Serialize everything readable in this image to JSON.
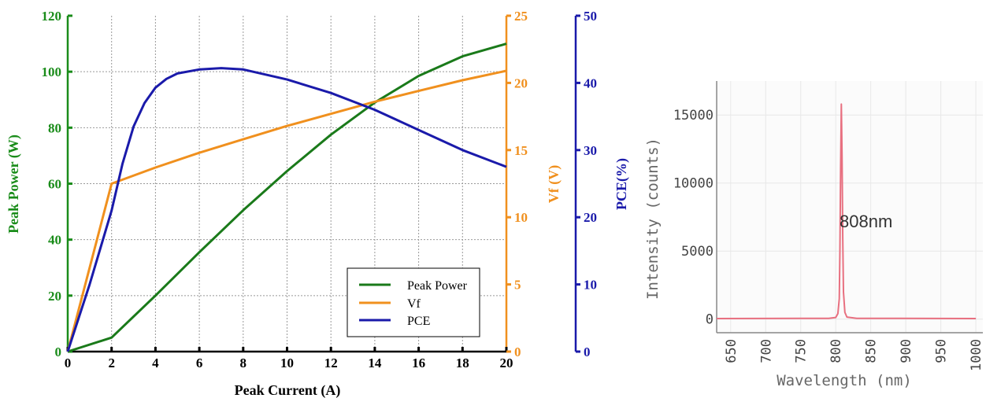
{
  "chart_data": [
    {
      "type": "line",
      "title": "",
      "xlabel": "Peak Current (A)",
      "xlim": [
        0,
        20
      ],
      "xticks": [
        0,
        2,
        4,
        6,
        8,
        10,
        12,
        14,
        16,
        18,
        20
      ],
      "axes": {
        "left": {
          "label": "Peak Power (W)",
          "ylim": [
            0,
            120
          ],
          "ticks": [
            0,
            20,
            40,
            60,
            80,
            100,
            120
          ],
          "color": "#1a8c1a"
        },
        "right1": {
          "label": "Vf (V)",
          "ylim": [
            0,
            25
          ],
          "ticks": [
            0,
            5,
            10,
            15,
            20,
            25
          ],
          "color": "#f0901e"
        },
        "right2": {
          "label": "PCE(%)",
          "ylim": [
            0,
            50
          ],
          "ticks": [
            0,
            10,
            20,
            30,
            40,
            50
          ],
          "color": "#1a1aaa"
        }
      },
      "grid": true,
      "legend_position": "bottom-right",
      "series": [
        {
          "name": "Peak Power",
          "axis": "left",
          "color": "#1a7a1a",
          "x": [
            0,
            2,
            4,
            6,
            8,
            10,
            12,
            14,
            16,
            18,
            20
          ],
          "y": [
            0,
            5,
            20,
            35.5,
            50.5,
            64.5,
            77.5,
            89,
            98.5,
            105.5,
            110
          ]
        },
        {
          "name": "Vf",
          "axis": "right1",
          "color": "#f0901e",
          "x": [
            0,
            2,
            4,
            6,
            8,
            10,
            12,
            14,
            16,
            18,
            20
          ],
          "y": [
            0,
            12.5,
            13.7,
            14.8,
            15.8,
            16.8,
            17.7,
            18.6,
            19.4,
            20.2,
            20.9
          ]
        },
        {
          "name": "PCE",
          "axis": "right2",
          "color": "#1a1aaa",
          "x": [
            0,
            1,
            2,
            2.5,
            3,
            3.5,
            4,
            4.5,
            5,
            6,
            7,
            8,
            10,
            12,
            14,
            16,
            18,
            20
          ],
          "y": [
            0,
            10,
            21,
            28,
            33.5,
            37,
            39.3,
            40.6,
            41.4,
            42,
            42.2,
            42,
            40.5,
            38.5,
            36,
            33,
            30,
            27.5
          ]
        }
      ]
    },
    {
      "type": "line",
      "title": "",
      "xlabel": "Wavelength (nm)",
      "ylabel": "Intensity (counts)",
      "xlim": [
        630,
        1010
      ],
      "ylim": [
        -1000,
        17500
      ],
      "xticks": [
        650,
        700,
        750,
        800,
        850,
        900,
        950,
        1000
      ],
      "yticks": [
        0,
        5000,
        10000,
        15000
      ],
      "grid": true,
      "annotation": "808nm",
      "series": [
        {
          "color": "#e87080",
          "x": [
            630,
            790,
            800,
            803,
            805,
            806,
            807,
            808,
            809,
            810,
            811,
            813,
            816,
            830,
            1000
          ],
          "y": [
            40,
            60,
            120,
            400,
            1500,
            5000,
            11000,
            15800,
            12000,
            6000,
            2000,
            500,
            150,
            60,
            40
          ]
        }
      ]
    }
  ]
}
